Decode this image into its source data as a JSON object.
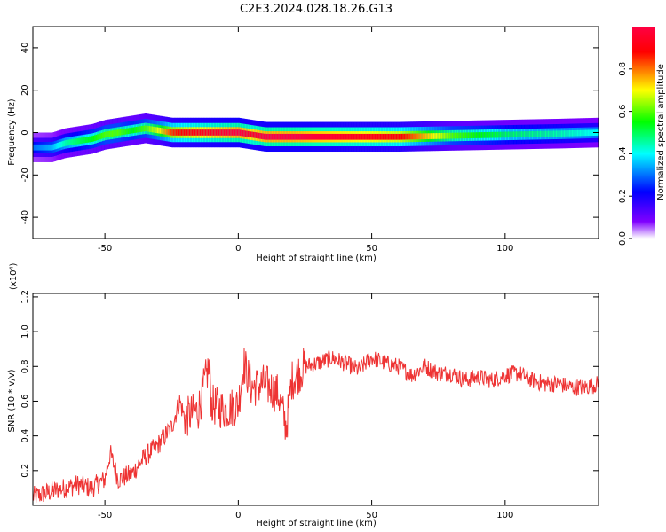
{
  "figure_title": "C2E3.2024.028.18.26.G13",
  "chart_data": [
    {
      "type": "heatmap",
      "title": "",
      "xlabel": "Height of straight line (km)",
      "ylabel": "Frequency (Hz)",
      "xlim": [
        -77,
        135
      ],
      "ylim": [
        -50,
        50
      ],
      "x_ticks": [
        -50,
        0,
        50,
        100
      ],
      "y_ticks": [
        -40,
        -20,
        0,
        20,
        40
      ],
      "colorbar": {
        "label": "Normalized spectral amplitude",
        "range": [
          0.0,
          1.0
        ],
        "ticks": [
          0.0,
          0.2,
          0.4,
          0.6,
          0.8
        ],
        "colormap": [
          "#ffffff",
          "#8000ff",
          "#0000ff",
          "#00ffff",
          "#00ff00",
          "#ffff00",
          "#ff0000"
        ]
      },
      "ridge": {
        "x": [
          -77,
          -70,
          -65,
          -60,
          -55,
          -50,
          -45,
          -40,
          -35,
          -30,
          -25,
          -20,
          -10,
          0,
          5,
          10,
          20,
          40,
          60,
          80,
          100,
          120,
          135
        ],
        "freq": [
          -7,
          -7,
          -5,
          -4,
          -3,
          -1,
          0,
          1,
          2,
          1,
          0,
          0,
          0,
          0,
          -1,
          -2,
          -2,
          -2,
          -2,
          -1.5,
          -1,
          -0.5,
          0
        ],
        "peak_amplitude": [
          0.3,
          0.35,
          0.45,
          0.5,
          0.55,
          0.6,
          0.6,
          0.55,
          0.6,
          0.7,
          0.85,
          0.9,
          0.95,
          1.0,
          0.95,
          1.0,
          1.0,
          0.95,
          0.9,
          0.6,
          0.5,
          0.45,
          0.4
        ]
      }
    },
    {
      "type": "line",
      "title": "",
      "xlabel": "Height of straight line (km)",
      "ylabel": "SNR (10 * v/v)",
      "y_scale_label": "(x10⁴)",
      "xlim": [
        -77,
        135
      ],
      "ylim": [
        0.0,
        1.22
      ],
      "x_ticks": [
        -50,
        0,
        50,
        100
      ],
      "y_ticks": [
        0.2,
        0.4,
        0.6,
        0.8,
        1.0,
        1.2
      ],
      "color": "#ee3333",
      "series": [
        {
          "x": [
            -77,
            -70,
            -65,
            -60,
            -55,
            -50,
            -48,
            -45,
            -40,
            -35,
            -30,
            -25,
            -22,
            -20,
            -15,
            -11,
            -10,
            -5,
            0,
            2,
            5,
            10,
            15,
            18,
            20,
            25,
            30,
            35,
            40,
            45,
            50,
            55,
            60,
            65,
            70,
            75,
            80,
            85,
            90,
            95,
            100,
            105,
            110,
            115,
            120,
            125,
            130,
            135
          ],
          "y": [
            0.05,
            0.08,
            0.1,
            0.12,
            0.1,
            0.15,
            0.3,
            0.15,
            0.18,
            0.28,
            0.35,
            0.45,
            0.6,
            0.5,
            0.55,
            0.8,
            0.58,
            0.55,
            0.58,
            0.82,
            0.68,
            0.7,
            0.64,
            0.45,
            0.72,
            0.8,
            0.82,
            0.85,
            0.82,
            0.78,
            0.85,
            0.82,
            0.8,
            0.75,
            0.8,
            0.76,
            0.76,
            0.72,
            0.74,
            0.72,
            0.75,
            0.76,
            0.72,
            0.7,
            0.7,
            0.68,
            0.68,
            0.7
          ]
        }
      ]
    }
  ]
}
